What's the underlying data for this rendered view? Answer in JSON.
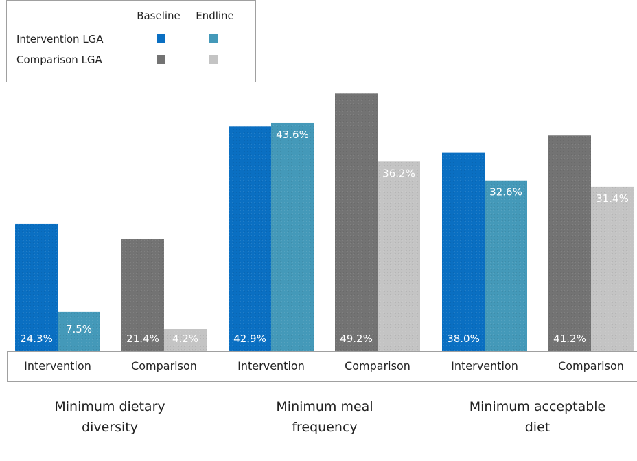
{
  "chart_data": {
    "type": "bar",
    "legend": {
      "position": "top-left",
      "columns": [
        "Baseline",
        "Endline"
      ],
      "rows": [
        "Intervention LGA",
        "Comparison LGA"
      ]
    },
    "groups": [
      {
        "label_lines": [
          "Minimum dietary",
          "diversity"
        ],
        "categories": [
          {
            "label": "Intervention",
            "baseline": 24.3,
            "endline": 7.5
          },
          {
            "label": "Comparison",
            "baseline": 21.4,
            "endline": 4.2
          }
        ]
      },
      {
        "label_lines": [
          "Minimum meal",
          "frequency"
        ],
        "categories": [
          {
            "label": "Intervention",
            "baseline": 42.9,
            "endline": 43.6
          },
          {
            "label": "Comparison",
            "baseline": 49.2,
            "endline": 36.2
          }
        ]
      },
      {
        "label_lines": [
          "Minimum acceptable",
          "diet"
        ],
        "categories": [
          {
            "label": "Intervention",
            "baseline": 38.0,
            "endline": 32.6
          },
          {
            "label": "Comparison",
            "baseline": 41.2,
            "endline": 31.4
          }
        ]
      }
    ],
    "value_suffix": "%",
    "ylim": [
      0,
      52
    ],
    "grid": false,
    "colors": {
      "intervention_baseline": "#0a6fc2",
      "intervention_endline": "#4499b9",
      "comparison_baseline": "#737373",
      "comparison_endline": "#c4c4c4"
    }
  }
}
